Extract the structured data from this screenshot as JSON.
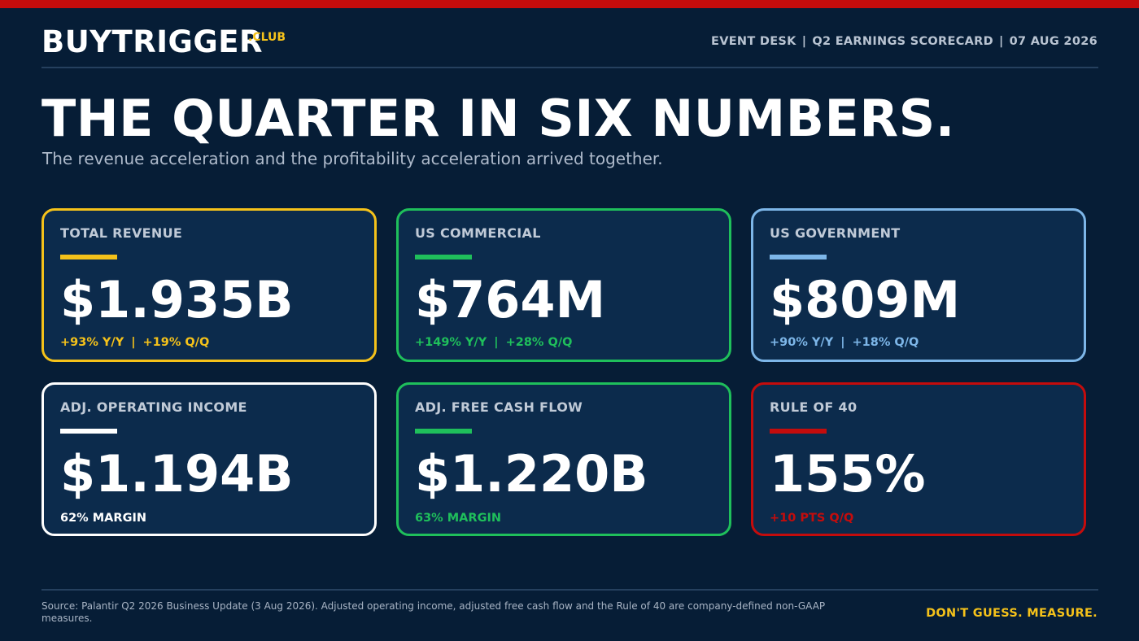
{
  "brand": {
    "name": "BUYTRIGGER",
    "suffix": ".CLUB"
  },
  "header": {
    "desk": "EVENT DESK",
    "report": "Q2 EARNINGS SCORECARD",
    "date": "07 AUG 2026",
    "separator": "|"
  },
  "headline": "THE QUARTER IN SIX NUMBERS.",
  "subhead": "The revenue acceleration and the profitability acceleration arrived together.",
  "cards": [
    {
      "label": "TOTAL REVENUE",
      "value": "$1.935B",
      "sub": [
        "+93% Y/Y",
        "+19% Q/Q"
      ],
      "color": "#f5c21a"
    },
    {
      "label": "US COMMERCIAL",
      "value": "$764M",
      "sub": [
        "+149% Y/Y",
        "+28% Q/Q"
      ],
      "color": "#1fbf5b"
    },
    {
      "label": "US GOVERNMENT",
      "value": "$809M",
      "sub": [
        "+90% Y/Y",
        "+18% Q/Q"
      ],
      "color": "#7db6e8"
    },
    {
      "label": "ADJ. OPERATING INCOME",
      "value": "$1.194B",
      "sub": [
        "62% MARGIN"
      ],
      "color": "#ffffff"
    },
    {
      "label": "ADJ. FREE CASH FLOW",
      "value": "$1.220B",
      "sub": [
        "63% MARGIN"
      ],
      "color": "#1fbf5b"
    },
    {
      "label": "RULE OF 40",
      "value": "155%",
      "sub": [
        "+10 PTS Q/Q"
      ],
      "color": "#c40c0c"
    }
  ],
  "footer": {
    "source": "Source: Palantir Q2 2026 Business Update (3 Aug 2026). Adjusted operating income, adjusted free cash flow and the Rule of 40 are company-defined non-GAAP measures.",
    "tagline": "DON'T GUESS. MEASURE."
  },
  "colors": {
    "background": "#061d36",
    "card_bg": "#0c2b4c",
    "accent_red": "#c40c0c",
    "accent_gold": "#f5c21a"
  }
}
